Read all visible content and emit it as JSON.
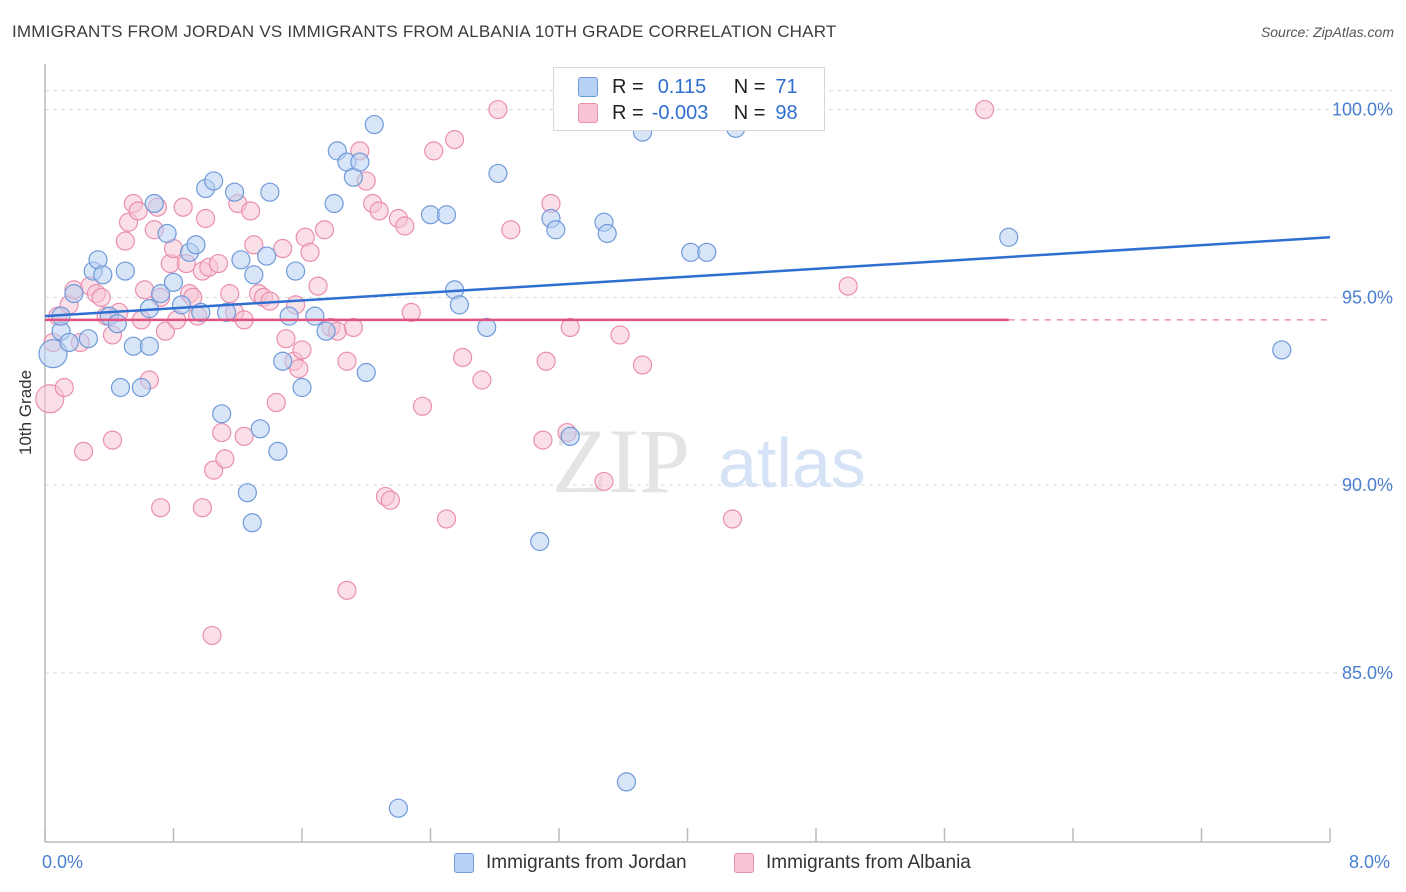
{
  "header": {
    "title": "IMMIGRANTS FROM JORDAN VS IMMIGRANTS FROM ALBANIA 10TH GRADE CORRELATION CHART",
    "source": "Source: ZipAtlas.com"
  },
  "legend": {
    "r_label": "R =",
    "n_label": "N =",
    "jordan": {
      "r": "0.115",
      "n": "71"
    },
    "albania": {
      "r": "-0.003",
      "n": "98"
    }
  },
  "bottom_legend": {
    "jordan": "Immigrants from Jordan",
    "albania": "Immigrants from Albania"
  },
  "watermark": {
    "zip": "ZIP",
    "atlas": "atlas"
  },
  "colors": {
    "jordan_fill": "#b8d0f3",
    "jordan_stroke": "#6f9ad9",
    "jordan_line": "#2f6fd1",
    "albania_fill": "#f8c4d4",
    "albania_stroke": "#ea8fae",
    "albania_line": "#e0527f",
    "tick_label": "#4a7fd0",
    "grid": "#d9d9d9"
  },
  "chart_data": {
    "type": "scatter",
    "title": "IMMIGRANTS FROM JORDAN VS IMMIGRANTS FROM ALBANIA 10TH GRADE CORRELATION CHART",
    "xlabel": "",
    "ylabel": "10th Grade",
    "xlim": [
      0,
      8
    ],
    "ylim": [
      80.5,
      101
    ],
    "x_tick_labels": [
      "0.0%",
      "8.0%"
    ],
    "y_ticks": [
      85,
      90,
      95,
      100
    ],
    "y_tick_labels": [
      "85.0%",
      "90.0%",
      "95.0%",
      "100.0%"
    ],
    "grid": "horizontal dashed",
    "legend_position": "top-center",
    "series": [
      {
        "name": "Immigrants from Jordan",
        "trend": {
          "x": [
            0,
            8
          ],
          "y": [
            94.5,
            96.6
          ]
        },
        "points": [
          [
            0.05,
            93.5
          ],
          [
            0.1,
            94.1
          ],
          [
            0.1,
            94.5
          ],
          [
            0.15,
            93.8
          ],
          [
            0.18,
            95.1
          ],
          [
            0.27,
            93.9
          ],
          [
            0.3,
            95.7
          ],
          [
            0.33,
            96.0
          ],
          [
            0.36,
            95.6
          ],
          [
            0.4,
            94.5
          ],
          [
            0.45,
            94.3
          ],
          [
            0.47,
            92.6
          ],
          [
            0.5,
            95.7
          ],
          [
            0.55,
            93.7
          ],
          [
            0.6,
            92.6
          ],
          [
            0.65,
            93.7
          ],
          [
            0.68,
            97.5
          ],
          [
            0.72,
            95.1
          ],
          [
            0.76,
            96.7
          ],
          [
            0.8,
            95.4
          ],
          [
            0.85,
            94.8
          ],
          [
            0.9,
            96.2
          ],
          [
            0.94,
            96.4
          ],
          [
            0.97,
            94.6
          ],
          [
            1.0,
            97.9
          ],
          [
            1.05,
            98.1
          ],
          [
            1.1,
            91.9
          ],
          [
            1.13,
            94.6
          ],
          [
            1.18,
            97.8
          ],
          [
            1.22,
            96.0
          ],
          [
            1.26,
            89.8
          ],
          [
            1.29,
            89.0
          ],
          [
            1.34,
            91.5
          ],
          [
            1.38,
            96.1
          ],
          [
            1.4,
            97.8
          ],
          [
            1.45,
            90.9
          ],
          [
            1.48,
            93.3
          ],
          [
            1.52,
            94.5
          ],
          [
            1.56,
            95.7
          ],
          [
            1.6,
            92.6
          ],
          [
            1.68,
            94.5
          ],
          [
            1.75,
            94.1
          ],
          [
            1.8,
            97.5
          ],
          [
            1.82,
            98.9
          ],
          [
            1.88,
            98.6
          ],
          [
            1.92,
            98.2
          ],
          [
            1.96,
            98.6
          ],
          [
            2.0,
            93.0
          ],
          [
            2.05,
            99.6
          ],
          [
            2.2,
            81.4
          ],
          [
            2.4,
            97.2
          ],
          [
            2.5,
            97.2
          ],
          [
            2.55,
            95.2
          ],
          [
            2.75,
            94.2
          ],
          [
            2.82,
            98.3
          ],
          [
            3.08,
            88.5
          ],
          [
            3.15,
            97.1
          ],
          [
            3.18,
            96.8
          ],
          [
            3.27,
            91.3
          ],
          [
            3.48,
            97.0
          ],
          [
            3.5,
            96.7
          ],
          [
            3.62,
            82.1
          ],
          [
            3.72,
            99.4
          ],
          [
            4.02,
            96.2
          ],
          [
            4.12,
            96.2
          ],
          [
            4.3,
            99.5
          ],
          [
            6.0,
            96.6
          ],
          [
            7.7,
            93.6
          ],
          [
            0.65,
            94.7
          ],
          [
            1.3,
            95.6
          ],
          [
            2.58,
            94.8
          ]
        ]
      },
      {
        "name": "Immigrants from Albania",
        "trend": {
          "x": [
            0,
            6
          ],
          "y": [
            94.4,
            94.4
          ]
        },
        "trend_dashed": {
          "x": [
            6,
            8
          ],
          "y": [
            94.4,
            94.4
          ]
        },
        "points": [
          [
            0.03,
            92.3
          ],
          [
            0.05,
            93.8
          ],
          [
            0.08,
            94.5
          ],
          [
            0.12,
            92.6
          ],
          [
            0.15,
            94.8
          ],
          [
            0.18,
            95.2
          ],
          [
            0.22,
            93.8
          ],
          [
            0.24,
            90.9
          ],
          [
            0.28,
            95.3
          ],
          [
            0.32,
            95.1
          ],
          [
            0.35,
            95.0
          ],
          [
            0.38,
            94.5
          ],
          [
            0.42,
            94.0
          ],
          [
            0.46,
            94.6
          ],
          [
            0.5,
            96.5
          ],
          [
            0.52,
            97.0
          ],
          [
            0.55,
            97.5
          ],
          [
            0.58,
            97.3
          ],
          [
            0.6,
            94.4
          ],
          [
            0.62,
            95.2
          ],
          [
            0.65,
            92.8
          ],
          [
            0.68,
            96.8
          ],
          [
            0.7,
            97.4
          ],
          [
            0.72,
            95.0
          ],
          [
            0.75,
            94.1
          ],
          [
            0.78,
            95.9
          ],
          [
            0.8,
            96.3
          ],
          [
            0.82,
            94.4
          ],
          [
            0.86,
            97.4
          ],
          [
            0.88,
            95.9
          ],
          [
            0.9,
            95.1
          ],
          [
            0.92,
            95.0
          ],
          [
            0.95,
            94.5
          ],
          [
            0.98,
            95.7
          ],
          [
            1.0,
            97.1
          ],
          [
            1.02,
            95.8
          ],
          [
            1.05,
            90.4
          ],
          [
            1.08,
            95.9
          ],
          [
            1.1,
            91.4
          ],
          [
            1.12,
            90.7
          ],
          [
            1.15,
            95.1
          ],
          [
            1.18,
            94.6
          ],
          [
            1.2,
            97.5
          ],
          [
            1.24,
            91.3
          ],
          [
            1.28,
            97.3
          ],
          [
            1.3,
            96.4
          ],
          [
            1.33,
            95.1
          ],
          [
            1.36,
            95.0
          ],
          [
            1.4,
            94.9
          ],
          [
            1.44,
            92.2
          ],
          [
            1.48,
            96.3
          ],
          [
            1.5,
            93.9
          ],
          [
            1.55,
            93.3
          ],
          [
            1.58,
            93.1
          ],
          [
            1.62,
            96.6
          ],
          [
            1.65,
            96.2
          ],
          [
            1.7,
            95.3
          ],
          [
            1.74,
            96.8
          ],
          [
            1.78,
            94.2
          ],
          [
            1.82,
            94.1
          ],
          [
            1.88,
            93.3
          ],
          [
            1.92,
            94.2
          ],
          [
            1.96,
            98.9
          ],
          [
            2.0,
            98.1
          ],
          [
            2.04,
            97.5
          ],
          [
            2.08,
            97.3
          ],
          [
            2.12,
            89.7
          ],
          [
            2.15,
            89.6
          ],
          [
            2.2,
            97.1
          ],
          [
            2.24,
            96.9
          ],
          [
            2.28,
            94.6
          ],
          [
            2.35,
            92.1
          ],
          [
            2.42,
            98.9
          ],
          [
            2.5,
            89.1
          ],
          [
            2.55,
            99.2
          ],
          [
            2.6,
            93.4
          ],
          [
            2.72,
            92.8
          ],
          [
            2.82,
            100.0
          ],
          [
            2.9,
            96.8
          ],
          [
            3.1,
            91.2
          ],
          [
            3.12,
            93.3
          ],
          [
            3.15,
            97.5
          ],
          [
            3.25,
            91.4
          ],
          [
            3.27,
            94.2
          ],
          [
            3.48,
            90.1
          ],
          [
            3.58,
            94.0
          ],
          [
            3.72,
            93.2
          ],
          [
            4.28,
            89.1
          ],
          [
            5.0,
            95.3
          ],
          [
            5.85,
            100.0
          ],
          [
            1.56,
            94.8
          ],
          [
            1.04,
            86.0
          ],
          [
            1.88,
            87.2
          ],
          [
            0.72,
            89.4
          ],
          [
            0.98,
            89.4
          ],
          [
            0.42,
            91.2
          ],
          [
            1.6,
            93.6
          ],
          [
            1.24,
            94.4
          ]
        ]
      }
    ]
  }
}
